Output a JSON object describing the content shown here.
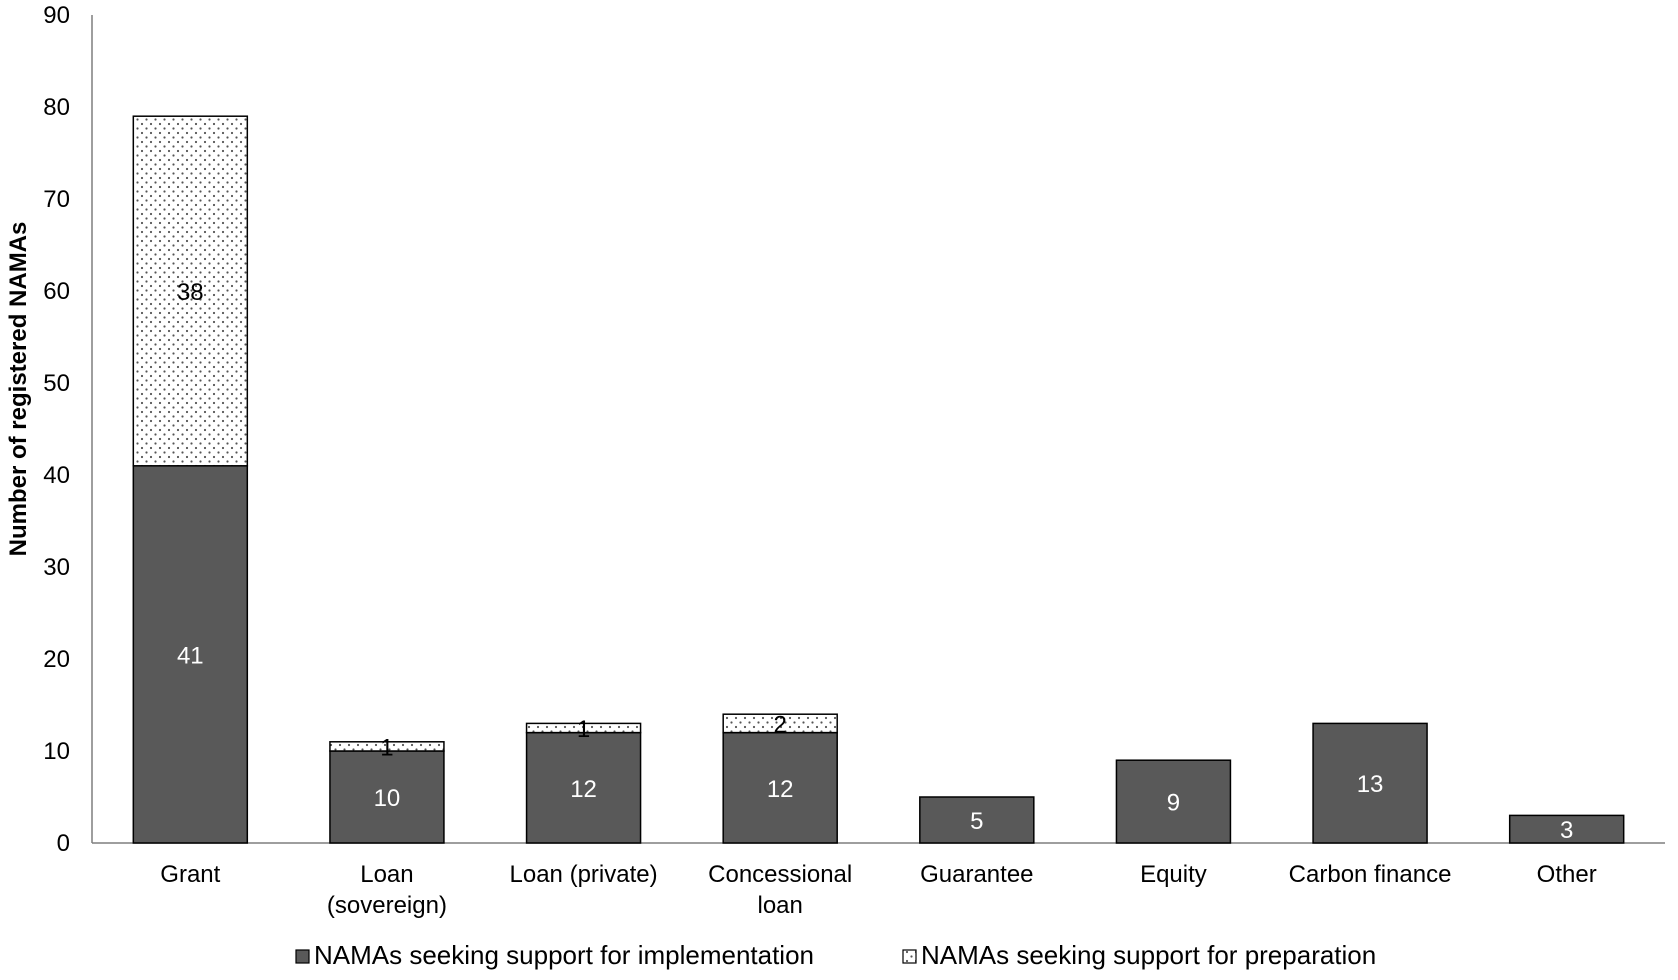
{
  "chart_data": {
    "type": "bar",
    "stacked": true,
    "categories": [
      [
        "Grant"
      ],
      [
        "Loan",
        "(sovereign)"
      ],
      [
        "Loan (private)"
      ],
      [
        "Concessional",
        "loan"
      ],
      [
        "Guarantee"
      ],
      [
        "Equity"
      ],
      [
        "Carbon finance"
      ],
      [
        "Other"
      ]
    ],
    "series": [
      {
        "name": "NAMAs seeking support for implementation",
        "values": [
          41,
          10,
          12,
          12,
          5,
          9,
          13,
          3
        ],
        "color": "#595959",
        "label_color": "#ffffff"
      },
      {
        "name": "NAMAs seeking support for preparation",
        "values": [
          38,
          1,
          1,
          2,
          0,
          0,
          0,
          0
        ],
        "color": "#ffffff",
        "pattern": "dotted",
        "label_color": "#000000"
      }
    ],
    "ylabel": "Number of registered NAMAs",
    "ylim": [
      0,
      90
    ],
    "yticks": [
      0,
      10,
      20,
      30,
      40,
      50,
      60,
      70,
      80,
      90
    ],
    "grid": false,
    "legend_position": "bottom"
  }
}
